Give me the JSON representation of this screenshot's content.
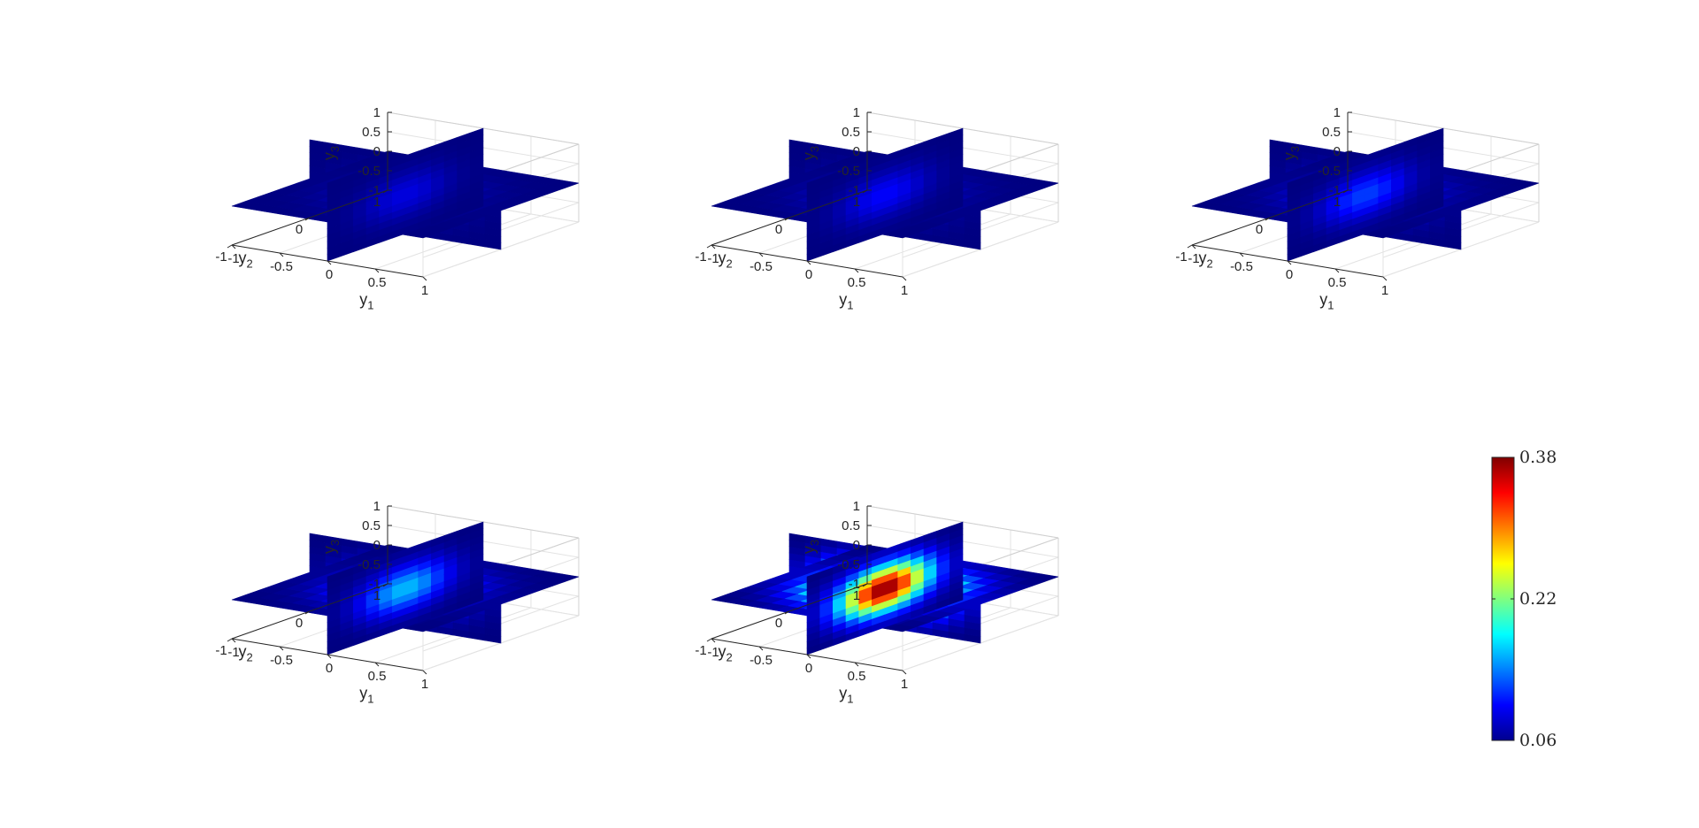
{
  "chart_data": [
    {
      "type": "surface3d",
      "panel": 1,
      "xlabel": "y",
      "xlabel_sub": "1",
      "ylabel": "y",
      "ylabel_sub": "2",
      "zlabel": "y",
      "zlabel_sub": "3",
      "xlim": [
        -1,
        1
      ],
      "ylim": [
        -1,
        1
      ],
      "zlim": [
        -1,
        1
      ],
      "x_ticks": [
        "-1",
        "-0.5",
        "0",
        "0.5",
        "1"
      ],
      "y_ticks": [
        "-1",
        "0",
        "1"
      ],
      "z_ticks": [
        "-1",
        "-0.5",
        "0",
        "0.5",
        "1"
      ],
      "slice_planes": [
        "y1=0",
        "y2=0",
        "y3=0"
      ],
      "peak_value": 0.09,
      "grid": true
    },
    {
      "type": "surface3d",
      "panel": 2,
      "xlabel": "y",
      "xlabel_sub": "1",
      "ylabel": "y",
      "ylabel_sub": "2",
      "zlabel": "y",
      "zlabel_sub": "3",
      "xlim": [
        -1,
        1
      ],
      "ylim": [
        -1,
        1
      ],
      "zlim": [
        -1,
        1
      ],
      "x_ticks": [
        "-1",
        "-0.5",
        "0",
        "0.5",
        "1"
      ],
      "y_ticks": [
        "-1",
        "0",
        "1"
      ],
      "z_ticks": [
        "-1",
        "-0.5",
        "0",
        "0.5",
        "1"
      ],
      "slice_planes": [
        "y1=0",
        "y2=0",
        "y3=0"
      ],
      "peak_value": 0.1,
      "grid": true
    },
    {
      "type": "surface3d",
      "panel": 3,
      "xlabel": "y",
      "xlabel_sub": "1",
      "ylabel": "y",
      "ylabel_sub": "2",
      "zlabel": "y",
      "zlabel_sub": "3",
      "xlim": [
        -1,
        1
      ],
      "ylim": [
        -1,
        1
      ],
      "zlim": [
        -1,
        1
      ],
      "x_ticks": [
        "-1",
        "-0.5",
        "0",
        "0.5",
        "1"
      ],
      "y_ticks": [
        "-1",
        "0",
        "1"
      ],
      "z_ticks": [
        "-1",
        "-0.5",
        "0",
        "0.5",
        "1"
      ],
      "slice_planes": [
        "y1=0",
        "y2=0",
        "y3=0"
      ],
      "peak_value": 0.12,
      "grid": true
    },
    {
      "type": "surface3d",
      "panel": 4,
      "xlabel": "y",
      "xlabel_sub": "1",
      "ylabel": "y",
      "ylabel_sub": "2",
      "zlabel": "y",
      "zlabel_sub": "3",
      "xlim": [
        -1,
        1
      ],
      "ylim": [
        -1,
        1
      ],
      "zlim": [
        -1,
        1
      ],
      "x_ticks": [
        "-1",
        "-0.5",
        "0",
        "0.5",
        "1"
      ],
      "y_ticks": [
        "-1",
        "0",
        "1"
      ],
      "z_ticks": [
        "-1",
        "-0.5",
        "0",
        "0.5",
        "1"
      ],
      "slice_planes": [
        "y1=0",
        "y2=0",
        "y3=0"
      ],
      "peak_value": 0.16,
      "grid": true
    },
    {
      "type": "surface3d",
      "panel": 5,
      "xlabel": "y",
      "xlabel_sub": "1",
      "ylabel": "y",
      "ylabel_sub": "2",
      "zlabel": "y",
      "zlabel_sub": "3",
      "xlim": [
        -1,
        1
      ],
      "ylim": [
        -1,
        1
      ],
      "zlim": [
        -1,
        1
      ],
      "x_ticks": [
        "-1",
        "-0.5",
        "0",
        "0.5",
        "1"
      ],
      "y_ticks": [
        "-1",
        "0",
        "1"
      ],
      "z_ticks": [
        "-1",
        "-0.5",
        "0",
        "0.5",
        "1"
      ],
      "slice_planes": [
        "y1=0",
        "y2=0",
        "y3=0"
      ],
      "peak_value": 0.38,
      "grid": true
    }
  ],
  "colorbar": {
    "colormap": "jet",
    "min": 0.06,
    "max": 0.38,
    "tick_values": [
      0.06,
      0.22,
      0.38
    ],
    "tick_labels": [
      "0.06",
      "0.22",
      "0.38"
    ]
  }
}
